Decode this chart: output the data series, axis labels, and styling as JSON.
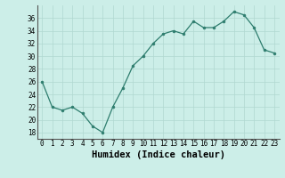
{
  "x": [
    0,
    1,
    2,
    3,
    4,
    5,
    6,
    7,
    8,
    9,
    10,
    11,
    12,
    13,
    14,
    15,
    16,
    17,
    18,
    19,
    20,
    21,
    22,
    23
  ],
  "y": [
    26,
    22,
    21.5,
    22,
    21,
    19,
    18,
    22,
    25,
    28.5,
    30,
    32,
    33.5,
    34,
    33.5,
    35.5,
    34.5,
    34.5,
    35.5,
    37,
    36.5,
    34.5,
    31,
    30.5
  ],
  "line_color": "#2e7d6e",
  "marker_color": "#2e7d6e",
  "bg_color": "#cceee8",
  "grid_color": "#b0d8d0",
  "xlabel": "Humidex (Indice chaleur)",
  "ylim": [
    17,
    38
  ],
  "xlim": [
    -0.5,
    23.5
  ],
  "yticks": [
    18,
    20,
    22,
    24,
    26,
    28,
    30,
    32,
    34,
    36
  ],
  "xticks": [
    0,
    1,
    2,
    3,
    4,
    5,
    6,
    7,
    8,
    9,
    10,
    11,
    12,
    13,
    14,
    15,
    16,
    17,
    18,
    19,
    20,
    21,
    22,
    23
  ],
  "tick_fontsize": 5.5,
  "xlabel_fontsize": 7.5
}
